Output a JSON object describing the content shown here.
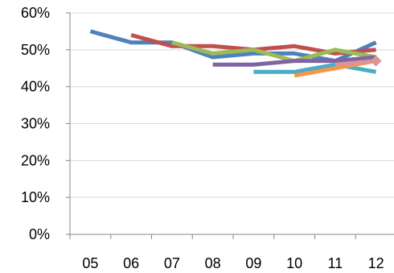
{
  "chart_data": {
    "type": "line",
    "categories": [
      "05",
      "06",
      "07",
      "08",
      "09",
      "10",
      "11",
      "12"
    ],
    "y_ticks": [
      "0%",
      "10%",
      "20%",
      "30%",
      "40%",
      "50%",
      "60%"
    ],
    "ylim": [
      0,
      60
    ],
    "grid": "horizontal",
    "series": [
      {
        "color": "#4F81BD",
        "values": [
          55,
          52,
          52,
          48,
          49,
          49,
          47,
          52
        ]
      },
      {
        "color": "#C0504D",
        "values": [
          null,
          54,
          51,
          51,
          50,
          51,
          49,
          50
        ]
      },
      {
        "color": "#9BBB59",
        "values": [
          null,
          null,
          52,
          49,
          50,
          47,
          50,
          48
        ]
      },
      {
        "color": "#8064A2",
        "values": [
          null,
          null,
          null,
          46,
          46,
          47,
          47,
          48
        ]
      },
      {
        "color": "#4BACC6",
        "values": [
          null,
          null,
          null,
          null,
          44,
          44,
          46,
          44
        ]
      },
      {
        "color": "#F79646",
        "values": [
          null,
          null,
          null,
          null,
          null,
          43,
          45,
          47
        ]
      },
      {
        "color": "#D99694",
        "values": [
          null,
          null,
          null,
          null,
          null,
          null,
          46,
          47
        ],
        "marker": "diamond"
      }
    ]
  }
}
